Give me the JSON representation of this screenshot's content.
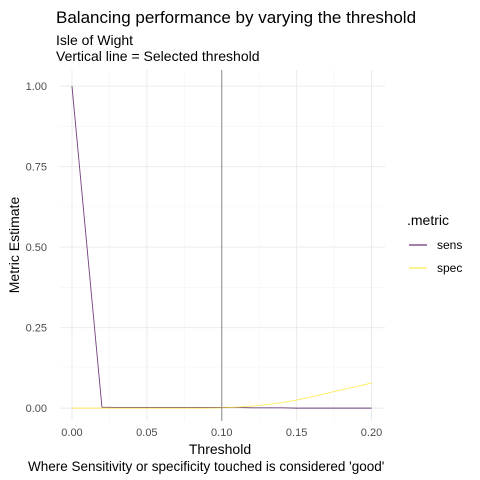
{
  "chart_data": {
    "type": "line",
    "title": "Balancing performance by varying the threshold",
    "subtitle_lines": [
      "Isle of Wight",
      "Vertical line = Selected threshold"
    ],
    "xlabel": "Threshold",
    "ylabel": "Metric Estimate",
    "caption": "Where Sensitivity or specificity touched is considered 'good'",
    "xlim": [
      -0.008,
      0.209
    ],
    "ylim": [
      -0.04,
      1.05
    ],
    "x_ticks": [
      0.0,
      0.05,
      0.1,
      0.15,
      0.2
    ],
    "x_tick_labels": [
      "0.00",
      "0.05",
      "0.10",
      "0.15",
      "0.20"
    ],
    "y_ticks": [
      0.0,
      0.25,
      0.5,
      0.75,
      1.0
    ],
    "y_tick_labels": [
      "0.00",
      "0.25",
      "0.50",
      "0.75",
      "1.00"
    ],
    "grid": true,
    "selected_threshold": 0.1,
    "legend": {
      "title": ".metric",
      "position": "right"
    },
    "series": [
      {
        "name": "sens",
        "color": "#440154",
        "x": [
          0.0,
          0.02,
          0.03,
          0.04,
          0.05,
          0.06,
          0.07,
          0.08,
          0.09,
          0.1,
          0.11,
          0.12,
          0.13,
          0.14,
          0.15,
          0.16,
          0.17,
          0.18,
          0.19,
          0.2
        ],
        "values": [
          1.0,
          0.003,
          0.002,
          0.002,
          0.002,
          0.002,
          0.002,
          0.002,
          0.002,
          0.002,
          0.002,
          0.001,
          0.001,
          0.001,
          0.0,
          0.0,
          0.0,
          0.0,
          0.0,
          0.0
        ]
      },
      {
        "name": "spec",
        "color": "#fde725",
        "x": [
          0.0,
          0.02,
          0.03,
          0.04,
          0.05,
          0.06,
          0.07,
          0.08,
          0.09,
          0.1,
          0.11,
          0.12,
          0.13,
          0.14,
          0.15,
          0.16,
          0.17,
          0.18,
          0.19,
          0.2
        ],
        "values": [
          0.0,
          0.0,
          0.0,
          0.0,
          0.0,
          0.0,
          0.0,
          0.0,
          0.0,
          0.001,
          0.003,
          0.006,
          0.011,
          0.017,
          0.025,
          0.035,
          0.046,
          0.057,
          0.067,
          0.078
        ]
      }
    ]
  }
}
